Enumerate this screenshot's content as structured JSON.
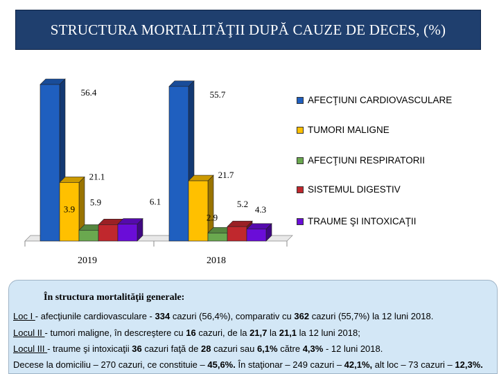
{
  "title": "STRUCTURA MORTALITĂŢII DUPĂ CAUZE DE DECES, (%)",
  "chart_data": {
    "type": "bar",
    "categories": [
      "2019",
      "2018"
    ],
    "series": [
      {
        "name": "AFECŢIUNI CARDIOVASCULARE",
        "color": "#1f5fbf",
        "values": [
          56.4,
          55.7
        ]
      },
      {
        "name": "TUMORI MALIGNE",
        "color": "#ffc000",
        "values": [
          21.1,
          21.7
        ]
      },
      {
        "name": "AFECŢIUNI RESPIRATORII",
        "color": "#6aa84f",
        "values": [
          3.9,
          2.9
        ]
      },
      {
        "name": "SISTEMUL DIGESTIV",
        "color": "#c0282d",
        "values": [
          5.9,
          5.2
        ]
      },
      {
        "name": "TRAUME ŞI INTOXICAŢII",
        "color": "#6a0dd8",
        "values": [
          6.1,
          4.3
        ]
      }
    ],
    "data_labels": {
      "2019": [
        "56.4",
        "21.1",
        "3.9",
        "5.9",
        "6.1"
      ],
      "2018": [
        "55.7",
        "21.7",
        "2.9",
        "5.2",
        "4.3"
      ]
    },
    "ylim": [
      0,
      60
    ],
    "grid": false,
    "legend": "right"
  },
  "info": {
    "heading": "În structura mortalităţii generale:",
    "line1": {
      "label": "Loc I ",
      "text": "- afecţiunile cardiovasculare - ",
      "n1": "334",
      "text2": " cazuri (56,4%), comparativ cu ",
      "n2": "362",
      "text3": " cazuri (55,7%) la 12 luni 2018."
    },
    "line2": {
      "label": "Locul II ",
      "text": "- tumori maligne, în descreştere cu ",
      "n1": "16",
      "text2": " cazuri, de la ",
      "n2": "21,7",
      "text3": " la ",
      "n3": "21,1",
      "text4": " la 12 luni 2018;"
    },
    "line3": {
      "label": "Locul III ",
      "text": "- traume şi intoxicaţii ",
      "n1": "36",
      "text2": " cazuri faţă de ",
      "n2": "28",
      "text3": " cazuri sau ",
      "n3": "6,1%",
      "text4": " către ",
      "n4": "4,3%",
      "text5": " - 12 luni 2018."
    },
    "line4": {
      "text": "Decese la domiciliu – 270 cazuri, ce constituie – ",
      "n1": "45,6%.",
      "text2": " În staţionar – 249 cazuri – ",
      "n2": "42,1%,",
      "text3": " alt loc – 73 cazuri – ",
      "n3": "12,3%."
    }
  }
}
